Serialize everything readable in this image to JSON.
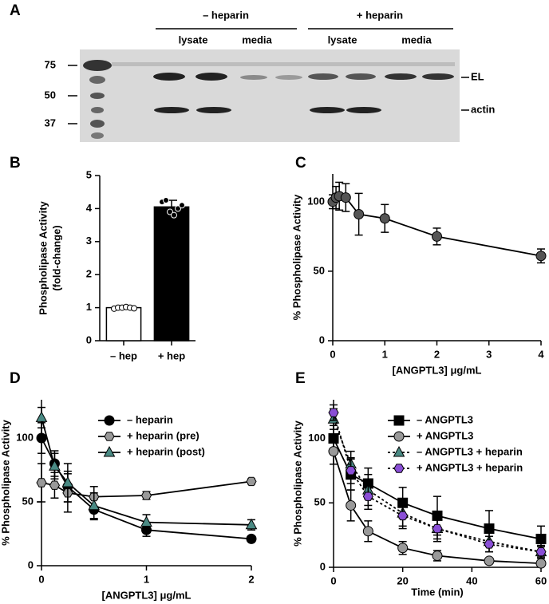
{
  "gel": {
    "panel": "A",
    "groups": [
      {
        "label": "– heparin",
        "lanes": [
          "lysate",
          "media"
        ]
      },
      {
        "label": "+ heparin",
        "lanes": [
          "lysate",
          "media"
        ]
      }
    ],
    "ladder": [
      75,
      50,
      37
    ],
    "bands": [
      "EL",
      "actin"
    ]
  },
  "chart_data": [
    {
      "type": "bar",
      "panel": "B",
      "ylabel": [
        "Phospholipase Activity",
        "(fold-change)"
      ],
      "categories": [
        "– hep",
        "+ hep"
      ],
      "values": [
        1.0,
        4.05
      ],
      "errors": [
        0.03,
        0.2
      ],
      "colors": [
        "#ffffff",
        "#000000"
      ],
      "points": [
        [
          0.97,
          1.0,
          1.0,
          1.02,
          1.0,
          0.98
        ],
        [
          4.2,
          4.25,
          3.9,
          3.8,
          4.0,
          4.1
        ]
      ],
      "ylim": [
        0,
        5
      ],
      "yticks": [
        0,
        1,
        2,
        3,
        4,
        5
      ]
    },
    {
      "type": "line",
      "panel": "C",
      "xlabel": "[ANGPTL3] μg/mL",
      "ylabel": "% Phospholipase Activity",
      "x": [
        0,
        0.0625,
        0.125,
        0.25,
        0.5,
        1,
        2,
        4
      ],
      "series": [
        {
          "name": null,
          "color": "#555555",
          "marker": "circle",
          "dash": "solid",
          "values": [
            100,
            103,
            104,
            103,
            91,
            88,
            75,
            61
          ],
          "errors": [
            5,
            8,
            10,
            10,
            15,
            10,
            6,
            5
          ]
        }
      ],
      "xlim": [
        0,
        4
      ],
      "xticks": [
        0,
        1,
        2,
        3,
        4
      ],
      "ylim": [
        0,
        120
      ],
      "yticks": [
        0,
        50,
        100
      ]
    },
    {
      "type": "line",
      "panel": "D",
      "xlabel": "[ANGPTL3] μg/mL",
      "ylabel": "% Phospholipase Activity",
      "x": [
        0,
        0.125,
        0.25,
        0.5,
        1,
        2
      ],
      "legend": "upper right",
      "series": [
        {
          "name": "– heparin",
          "color": "#000000",
          "marker": "circle",
          "dash": "solid",
          "values": [
            100,
            80,
            62,
            44,
            28,
            21
          ],
          "errors": [
            12,
            10,
            12,
            8,
            5,
            2
          ]
        },
        {
          "name": "+ heparin (pre)",
          "color": "#999999",
          "marker": "hexagon",
          "dash": "solid",
          "values": [
            65,
            63,
            57,
            54,
            55,
            66
          ],
          "errors": [
            15,
            10,
            15,
            8,
            3,
            2
          ]
        },
        {
          "name": "+ heparin (post)",
          "color": "#4a8a84",
          "marker": "triangle",
          "dash": "solid",
          "values": [
            116,
            78,
            65,
            47,
            34,
            32
          ],
          "errors": [
            8,
            10,
            15,
            10,
            6,
            4
          ]
        }
      ],
      "xlim": [
        0,
        2
      ],
      "xticks": [
        0,
        1,
        2
      ],
      "ylim": [
        0,
        130
      ],
      "yticks": [
        0,
        50,
        100
      ]
    },
    {
      "type": "line",
      "panel": "E",
      "xlabel": "Time (min)",
      "ylabel": "% Phospholipase Activity",
      "x": [
        0,
        5,
        10,
        20,
        30,
        45,
        60
      ],
      "legend": "upper right",
      "series": [
        {
          "name": "– ANGPTL3",
          "color": "#000000",
          "marker": "square",
          "dash": "solid",
          "values": [
            100,
            72,
            65,
            50,
            40,
            30,
            22
          ],
          "errors": [
            10,
            12,
            12,
            12,
            15,
            14,
            10
          ]
        },
        {
          "name": "+ ANGPTL3",
          "color": "#999999",
          "marker": "circle",
          "dash": "solid",
          "values": [
            90,
            48,
            28,
            15,
            9,
            5,
            3
          ],
          "errors": [
            10,
            12,
            8,
            5,
            4,
            2,
            2
          ]
        },
        {
          "name": "– ANGPTL3 + heparin",
          "color": "#4a8a84",
          "marker": "triangle",
          "dash": "dotted",
          "values": [
            115,
            80,
            60,
            42,
            30,
            20,
            12
          ],
          "errors": [
            8,
            10,
            12,
            10,
            10,
            8,
            5
          ]
        },
        {
          "name": "+ ANGPTL3 + heparin",
          "color": "#8a4fd6",
          "marker": "hexagon",
          "dash": "dotted",
          "values": [
            120,
            75,
            55,
            40,
            30,
            18,
            12
          ],
          "errors": [
            6,
            10,
            10,
            10,
            8,
            6,
            4
          ]
        }
      ],
      "xlim": [
        0,
        60
      ],
      "xticks": [
        0,
        20,
        40,
        60
      ],
      "ylim": [
        0,
        130
      ],
      "yticks": [
        0,
        50,
        100
      ]
    }
  ]
}
